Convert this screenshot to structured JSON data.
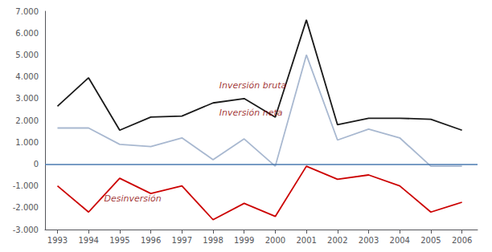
{
  "chart_data": {
    "type": "line",
    "x": [
      1993,
      1994,
      1995,
      1996,
      1997,
      1998,
      1999,
      2000,
      2001,
      2002,
      2003,
      2004,
      2005,
      2006
    ],
    "series": [
      {
        "color": "#1a1a1a",
        "values": [
          2650,
          3950,
          1550,
          2150,
          2200,
          2800,
          3000,
          2150,
          6600,
          1800,
          2100,
          2100,
          2050,
          1550
        ]
      },
      {
        "color": "#a8b8d0",
        "values": [
          1650,
          1650,
          900,
          800,
          1200,
          200,
          1150,
          -100,
          5000,
          1100,
          1600,
          1200,
          -100,
          -100
        ]
      },
      {
        "color": "#cc0000",
        "values": [
          -1000,
          -2200,
          -650,
          -1350,
          -1000,
          -2550,
          -1800,
          -2400,
          -100,
          -700,
          -500,
          -1000,
          -2200,
          -1750
        ]
      }
    ],
    "xlim": [
      1992.6,
      2006.5
    ],
    "xticks": [
      1993,
      1994,
      1995,
      1996,
      1997,
      1998,
      1999,
      2000,
      2001,
      2002,
      2003,
      2004,
      2005,
      2006
    ],
    "ylim": [
      -3000,
      7000
    ],
    "yticks": [
      {
        "value": -3000,
        "label": "-3.000"
      },
      {
        "value": -2000,
        "label": "-2.000"
      },
      {
        "value": -1000,
        "label": "-1.000"
      },
      0,
      {
        "value": 1000,
        "label": "1.000"
      },
      {
        "value": 2000,
        "label": "2.000"
      },
      {
        "value": 3000,
        "label": "3.000"
      },
      {
        "value": 4000,
        "label": "4.000"
      },
      {
        "value": 5000,
        "label": "5.000"
      },
      {
        "value": 6000,
        "label": "6.000"
      },
      {
        "value": 7000,
        "label": "7.000"
      }
    ],
    "grid": false,
    "hlines": [
      {
        "y": 0,
        "color": "#4a7ab0"
      }
    ],
    "annotations": [
      {
        "text": "Inversión bruta",
        "x": 1998.2,
        "y": 3600,
        "color": "#8B0000"
      },
      {
        "text": "Inversión neta",
        "x": 1998.2,
        "y": 2350,
        "color": "#8B0000"
      },
      {
        "text": "Desinversión",
        "x": 1994.5,
        "y": -1600,
        "color": "#8B0000"
      }
    ]
  }
}
